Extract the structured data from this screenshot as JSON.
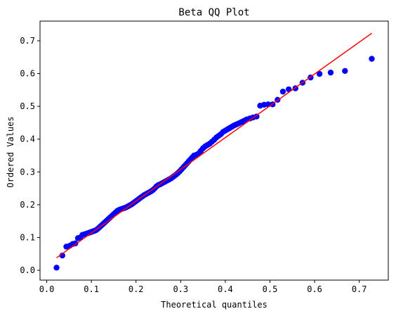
{
  "chart_data": {
    "type": "scatter",
    "title": "Beta QQ Plot",
    "xlabel": "Theoretical quantiles",
    "ylabel": "Ordered Values",
    "xlim": [
      -0.015,
      0.765
    ],
    "ylim": [
      -0.03,
      0.76
    ],
    "x_ticks": [
      "0.0",
      "0.1",
      "0.2",
      "0.3",
      "0.4",
      "0.5",
      "0.6",
      "0.7"
    ],
    "y_ticks": [
      "0.0",
      "0.1",
      "0.2",
      "0.3",
      "0.4",
      "0.5",
      "0.6",
      "0.7"
    ],
    "grid": false,
    "colors": {
      "points": "#0000ff",
      "fit_line": "#ff0000"
    },
    "fit_line": {
      "x": [
        0.022,
        0.728
      ],
      "y": [
        0.038,
        0.723
      ]
    },
    "series": [
      {
        "x": [
          0.022,
          0.035,
          0.044,
          0.052,
          0.058,
          0.064,
          0.07,
          0.075,
          0.08,
          0.085,
          0.09,
          0.094,
          0.098,
          0.102,
          0.106,
          0.11,
          0.114,
          0.118,
          0.122,
          0.126,
          0.13,
          0.134,
          0.138,
          0.142,
          0.146,
          0.15,
          0.154,
          0.158,
          0.162,
          0.166,
          0.17,
          0.174,
          0.178,
          0.182,
          0.186,
          0.19,
          0.194,
          0.198,
          0.202,
          0.206,
          0.21,
          0.214,
          0.218,
          0.222,
          0.226,
          0.23,
          0.234,
          0.238,
          0.242,
          0.246,
          0.25,
          0.254,
          0.258,
          0.262,
          0.266,
          0.27,
          0.274,
          0.278,
          0.282,
          0.286,
          0.29,
          0.294,
          0.298,
          0.302,
          0.306,
          0.31,
          0.314,
          0.318,
          0.322,
          0.326,
          0.33,
          0.335,
          0.34,
          0.345,
          0.35,
          0.355,
          0.36,
          0.365,
          0.37,
          0.375,
          0.38,
          0.385,
          0.39,
          0.395,
          0.4,
          0.405,
          0.41,
          0.415,
          0.42,
          0.425,
          0.43,
          0.436,
          0.442,
          0.448,
          0.455,
          0.462,
          0.47,
          0.478,
          0.487,
          0.496,
          0.506,
          0.517,
          0.529,
          0.542,
          0.557,
          0.573,
          0.591,
          0.611,
          0.636,
          0.668,
          0.728
        ],
        "y": [
          0.008,
          0.045,
          0.072,
          0.075,
          0.08,
          0.082,
          0.098,
          0.1,
          0.108,
          0.11,
          0.112,
          0.114,
          0.116,
          0.118,
          0.12,
          0.122,
          0.126,
          0.131,
          0.136,
          0.141,
          0.146,
          0.151,
          0.156,
          0.161,
          0.166,
          0.171,
          0.176,
          0.181,
          0.184,
          0.186,
          0.188,
          0.19,
          0.192,
          0.195,
          0.198,
          0.201,
          0.205,
          0.209,
          0.213,
          0.217,
          0.221,
          0.225,
          0.229,
          0.232,
          0.235,
          0.238,
          0.241,
          0.245,
          0.25,
          0.256,
          0.26,
          0.262,
          0.265,
          0.268,
          0.271,
          0.274,
          0.277,
          0.28,
          0.284,
          0.288,
          0.292,
          0.297,
          0.302,
          0.308,
          0.314,
          0.32,
          0.326,
          0.332,
          0.338,
          0.344,
          0.35,
          0.352,
          0.356,
          0.364,
          0.372,
          0.378,
          0.382,
          0.386,
          0.392,
          0.398,
          0.405,
          0.41,
          0.415,
          0.422,
          0.426,
          0.43,
          0.434,
          0.438,
          0.442,
          0.445,
          0.448,
          0.452,
          0.456,
          0.46,
          0.463,
          0.466,
          0.469,
          0.502,
          0.505,
          0.506,
          0.506,
          0.52,
          0.545,
          0.552,
          0.555,
          0.572,
          0.588,
          0.599,
          0.603,
          0.608,
          0.645
        ]
      }
    ]
  }
}
